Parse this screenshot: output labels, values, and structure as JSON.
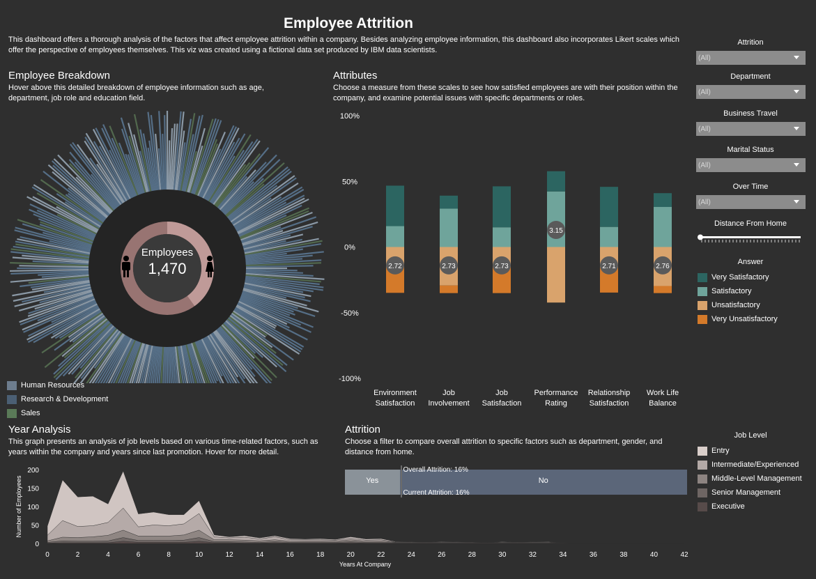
{
  "title": "Employee Attrition",
  "intro": "This dashboard offers a thorough analysis of the factors that affect employee attrition within a company.  Besides analyzing employee information, this dashboard also incorporates Likert scales which offer the perspective of employees themselves. This viz was created using a fictional data set produced by IBM data scientists.",
  "breakdown": {
    "title": "Employee Breakdown",
    "desc": "Hover above this detailed breakdown of employee information such as age, department, job role and education field.",
    "center_label": "Employees",
    "center_value": "1,470",
    "legend": [
      {
        "label": "Human Resources",
        "color": "#6d7d8e"
      },
      {
        "label": "Research & Development",
        "color": "#4b5f74"
      },
      {
        "label": "Sales",
        "color": "#5a7a58"
      }
    ],
    "colors": {
      "ring": "#242424",
      "donut_male": "#987472",
      "donut_female": "#bf9a98",
      "bar": "#5a7590",
      "bar_light": "#a9bccd",
      "bar_green": "#5f7d5a"
    }
  },
  "attributes": {
    "title": "Attributes",
    "desc": "Choose a measure from these scales to see how satisfied employees are with their position within the company, and examine potential issues with specific departments or roles."
  },
  "filters": [
    {
      "label": "Attrition",
      "value": "(All)"
    },
    {
      "label": "Department",
      "value": "(All)"
    },
    {
      "label": "Business Travel",
      "value": "(All)"
    },
    {
      "label": "Marital Status",
      "value": "(All)"
    },
    {
      "label": "Over Time",
      "value": "(All)"
    }
  ],
  "distance_label": "Distance From Home",
  "distance_slider_level": 0,
  "answer_legend": {
    "title": "Answer",
    "items": [
      {
        "label": "Very Satisfactory",
        "color": "#2c6561"
      },
      {
        "label": "Satisfactory",
        "color": "#6fa49b"
      },
      {
        "label": "Unsatisfactory",
        "color": "#d9a36c"
      },
      {
        "label": "Very Unsatisfactory",
        "color": "#d47a2a"
      }
    ]
  },
  "year_analysis": {
    "title": "Year Analysis",
    "desc": "This graph presents an analysis of job levels based on various time-related factors, such as years within the company and years since last promotion. Hover for more detail."
  },
  "attrition": {
    "title": "Attrition",
    "desc": "Choose a filter to compare overall attrition to specific factors such as department, gender, and distance from home.",
    "yes_label": "Yes",
    "no_label": "No",
    "overall": "Overall Attrition: 16%",
    "current": "Current Attrition: 16%",
    "yes_share": 16,
    "yes_color": "#8a9299",
    "no_color": "#5b6679"
  },
  "job_level_legend": {
    "title": "Job Level",
    "items": [
      {
        "label": "Entry",
        "color": "#d9ceca"
      },
      {
        "label": "Intermediate/Experienced",
        "color": "#b3a9a6"
      },
      {
        "label": "Middle-Level Management",
        "color": "#8d8481"
      },
      {
        "label": "Senior Management",
        "color": "#6e6563"
      },
      {
        "label": "Executive",
        "color": "#574b4a"
      }
    ]
  },
  "chart_data": [
    {
      "type": "bar",
      "name": "attributes-likert",
      "categories": [
        [
          "Environment",
          "Satisfaction"
        ],
        [
          "Job",
          "Involvement"
        ],
        [
          "Job",
          "Satisfaction"
        ],
        [
          "Performance",
          "Rating"
        ],
        [
          "Relationship",
          "Satisfaction"
        ],
        [
          "Work Life",
          "Balance"
        ]
      ],
      "averages": [
        "2.72",
        "2.73",
        "2.73",
        "3.15",
        "2.71",
        "2.76"
      ],
      "y_ticks": [
        "100%",
        "50%",
        "0%",
        "-50%",
        "-100%"
      ],
      "ylim": [
        -100,
        100
      ],
      "series": [
        {
          "name": "Very Satisfactory",
          "values": [
            30.8,
            9.9,
            31.2,
            15.4,
            30.5,
            10.5
          ]
        },
        {
          "name": "Satisfactory",
          "values": [
            15.9,
            29.2,
            15.0,
            42.3,
            15.3,
            30.5
          ]
        },
        {
          "name": "Unsatisfactory",
          "values": [
            -15.6,
            -29.3,
            -15.4,
            -42.3,
            -15.7,
            -29.7
          ]
        },
        {
          "name": "Very Unsatisfactory",
          "values": [
            -19.3,
            -5.8,
            -19.7,
            0,
            -19.0,
            -5.4
          ]
        }
      ]
    },
    {
      "type": "area",
      "name": "year-analysis",
      "xlabel": "Years At Company",
      "ylabel": "Number of Employees",
      "x_ticks": [
        0,
        2,
        4,
        6,
        8,
        10,
        12,
        14,
        16,
        18,
        20,
        22,
        24,
        26,
        28,
        30,
        32,
        34,
        36,
        38,
        40,
        42
      ],
      "y_ticks": [
        0,
        50,
        100,
        150,
        200
      ],
      "xlim": [
        0,
        42
      ],
      "ylim": [
        0,
        200
      ],
      "x": [
        0,
        1,
        2,
        3,
        4,
        5,
        6,
        7,
        8,
        9,
        10,
        11,
        12,
        13,
        14,
        15,
        16,
        17,
        18,
        19,
        20,
        21,
        22,
        23,
        24,
        25,
        26,
        27,
        28,
        29,
        30,
        31,
        32,
        33,
        34,
        35,
        36,
        37,
        38,
        39,
        40,
        41,
        42
      ],
      "series": [
        {
          "name": "Entry",
          "values": [
            25,
            110,
            80,
            80,
            50,
            100,
            35,
            35,
            30,
            25,
            35,
            5,
            3,
            4,
            3,
            3,
            3,
            2,
            3,
            2,
            4,
            3,
            3,
            1,
            0,
            0,
            1,
            0,
            0,
            0,
            1,
            0,
            0,
            1,
            0,
            0,
            0,
            0,
            0,
            0,
            0,
            0,
            0
          ]
        },
        {
          "name": "Intermediate/Experienced",
          "values": [
            15,
            45,
            30,
            30,
            35,
            60,
            25,
            30,
            28,
            30,
            45,
            8,
            5,
            8,
            5,
            8,
            4,
            3,
            3,
            3,
            4,
            3,
            3,
            1,
            1,
            0,
            1,
            1,
            0,
            0,
            1,
            0,
            1,
            1,
            0,
            0,
            0,
            0,
            0,
            0,
            0,
            0,
            0
          ]
        },
        {
          "name": "Middle-Level Management",
          "values": [
            4,
            10,
            10,
            12,
            15,
            20,
            12,
            12,
            12,
            14,
            20,
            5,
            5,
            5,
            4,
            5,
            3,
            4,
            4,
            3,
            5,
            3,
            4,
            1,
            1,
            1,
            1,
            1,
            1,
            0,
            1,
            1,
            1,
            1,
            0,
            0,
            0,
            0,
            0,
            0,
            0,
            0,
            0
          ]
        },
        {
          "name": "Senior Management",
          "values": [
            2,
            5,
            4,
            4,
            5,
            10,
            5,
            5,
            5,
            6,
            10,
            3,
            3,
            3,
            2,
            3,
            2,
            2,
            2,
            2,
            3,
            2,
            2,
            1,
            1,
            1,
            1,
            1,
            1,
            1,
            1,
            1,
            1,
            1,
            0,
            0,
            0,
            0,
            0,
            0,
            0,
            0,
            0
          ]
        },
        {
          "name": "Executive",
          "values": [
            1,
            2,
            2,
            2,
            2,
            6,
            3,
            3,
            3,
            3,
            6,
            2,
            2,
            1,
            1,
            2,
            1,
            1,
            1,
            1,
            2,
            1,
            1,
            1,
            1,
            1,
            1,
            1,
            1,
            1,
            1,
            1,
            1,
            1,
            1,
            0,
            0,
            0,
            0,
            0,
            0,
            0,
            0
          ]
        }
      ]
    }
  ]
}
